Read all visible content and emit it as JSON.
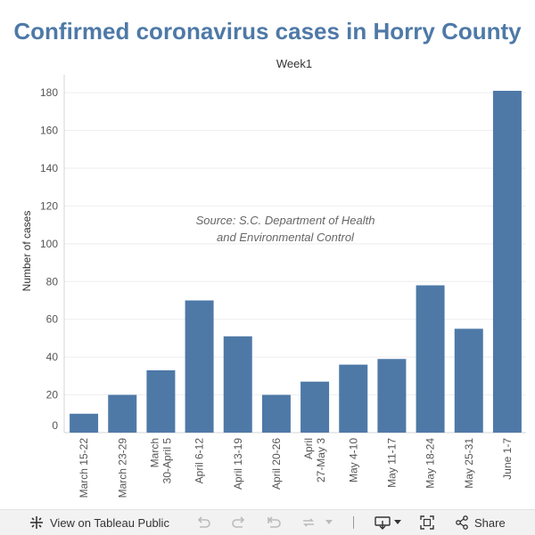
{
  "title": "Confirmed coronavirus cases in Horry County",
  "annotation": [
    "Source: S.C. Department of Health",
    "and Environmental Control"
  ],
  "colors": {
    "accent": "#4e79a7",
    "toolbar_bg": "#f2f2f2"
  },
  "chart_data": {
    "type": "bar",
    "title": "Week1",
    "xlabel": "",
    "ylabel": "Number of cases",
    "categories": [
      [
        "March 15-22"
      ],
      [
        "March 23-29"
      ],
      [
        "March",
        "30-April 5"
      ],
      [
        "April 6-12"
      ],
      [
        "April 13-19"
      ],
      [
        "April 20-26"
      ],
      [
        "April",
        "27-May 3"
      ],
      [
        "May 4-10"
      ],
      [
        "May 11-17"
      ],
      [
        "May 18-24"
      ],
      [
        "May 25-31"
      ],
      [
        "June 1-7"
      ]
    ],
    "values": [
      10,
      20,
      33,
      70,
      51,
      20,
      27,
      36,
      39,
      78,
      55,
      181
    ],
    "yticks": [
      0,
      20,
      40,
      60,
      80,
      100,
      120,
      140,
      160,
      180
    ],
    "ylim": [
      0,
      181
    ],
    "grid": true,
    "color": "#4e79a7"
  },
  "toolbar": {
    "view_label": "View on Tableau Public",
    "share_label": "Share",
    "icons": [
      "tableau-icon",
      "undo-icon",
      "redo-icon",
      "revert-icon",
      "refresh-icon",
      "dropdown-icon",
      "download-icon",
      "fullscreen-icon",
      "share-icon"
    ]
  }
}
